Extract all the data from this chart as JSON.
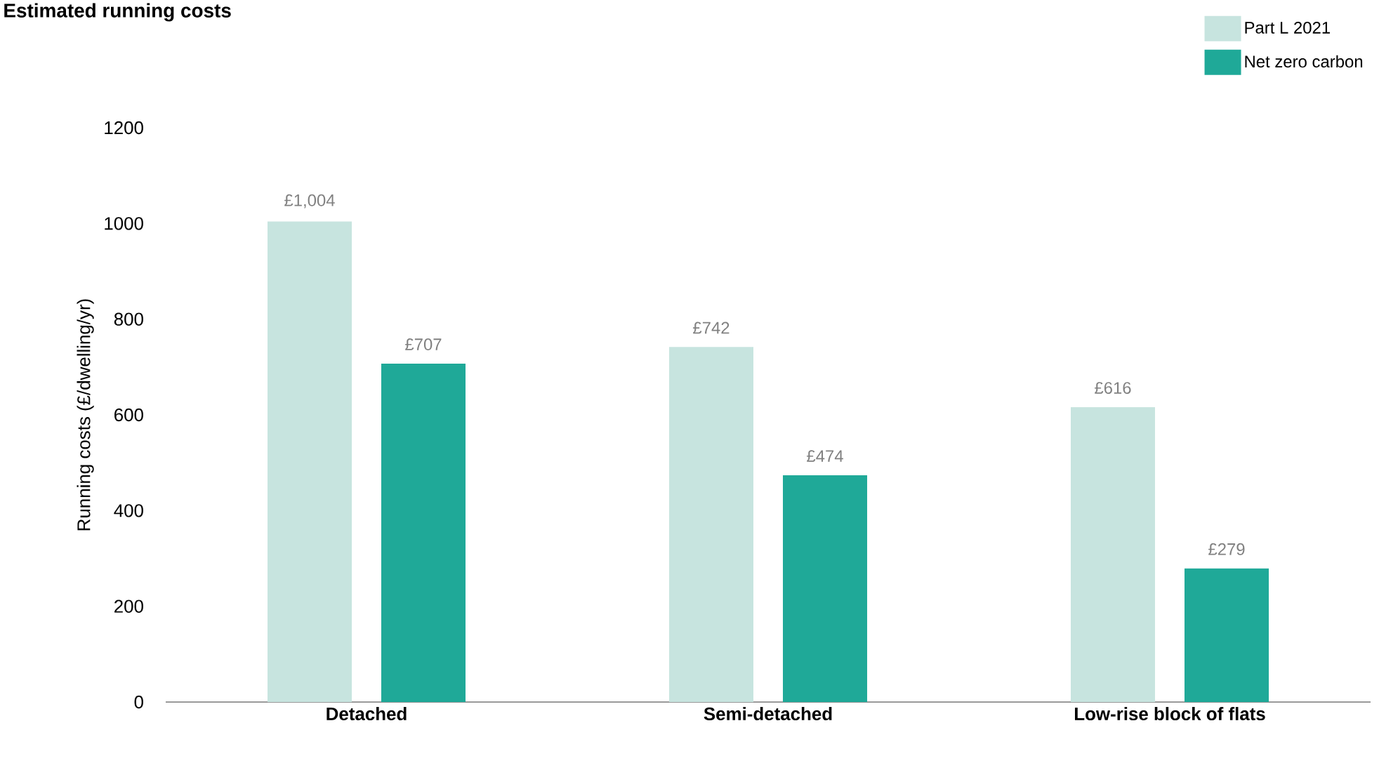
{
  "chart_data": {
    "type": "bar",
    "title": "Estimated running costs",
    "ylabel": "Running costs (£/dwelling/yr)",
    "categories": [
      "Detached",
      "Semi-detached",
      "Low-rise block of flats"
    ],
    "series": [
      {
        "name": "Part L 2021",
        "color": "#c7e4df",
        "values": [
          1004,
          742,
          616
        ],
        "value_labels": [
          "£1,004",
          "£742",
          "£616"
        ]
      },
      {
        "name": "Net zero carbon",
        "color": "#1fa998",
        "values": [
          707,
          474,
          279
        ],
        "value_labels": [
          "£707",
          "£474",
          "£279"
        ]
      }
    ],
    "ylim": [
      0,
      1200
    ],
    "yticks": [
      0,
      200,
      400,
      600,
      800,
      1000,
      1200
    ],
    "legend": "top right"
  }
}
